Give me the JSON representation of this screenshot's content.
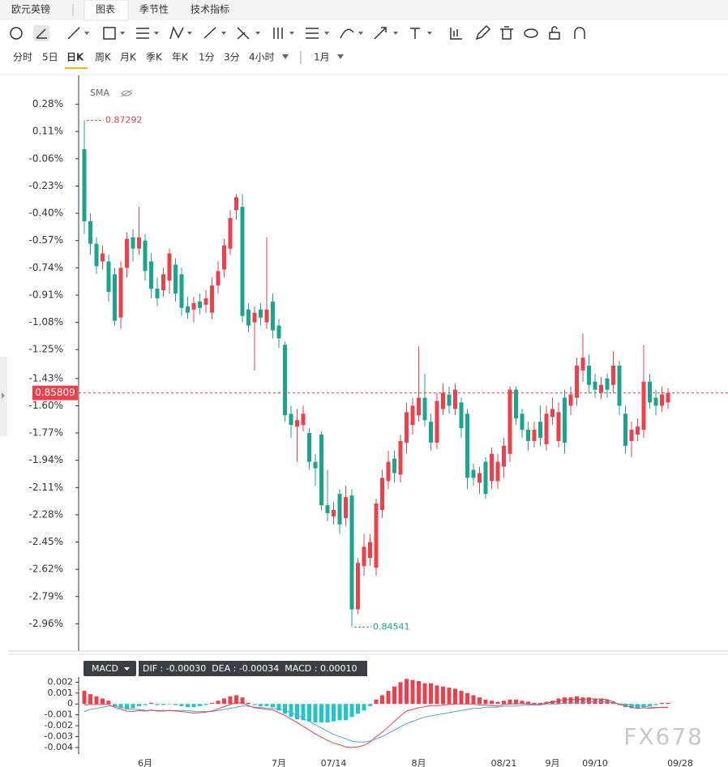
{
  "tabs": [
    "欧元英镑",
    "图表",
    "季节性",
    "技术指标"
  ],
  "periods": [
    "分时",
    "5日",
    "日K",
    "周K",
    "月K",
    "季K",
    "年K",
    "1分",
    "3分",
    "4小时"
  ],
  "period_extra": "1月",
  "watermark": "FX678",
  "chart_data": [
    {
      "type": "candlestick",
      "indicator": "SMA",
      "categories": [
        null,
        null,
        null,
        null,
        null,
        null,
        null,
        null,
        null,
        null,
        "6月",
        null,
        null,
        null,
        null,
        null,
        null,
        null,
        null,
        null,
        null,
        null,
        null,
        null,
        null,
        null,
        null,
        null,
        null,
        null,
        null,
        null,
        "7月",
        null,
        null,
        null,
        null,
        null,
        null,
        null,
        null,
        "07/14",
        null,
        null,
        null,
        null,
        null,
        null,
        null,
        null,
        null,
        null,
        null,
        null,
        null,
        "8月",
        null,
        null,
        null,
        null,
        null,
        null,
        null,
        null,
        null,
        null,
        null,
        null,
        null,
        "08/21",
        null,
        null,
        null,
        null,
        null,
        null,
        null,
        "9月",
        null,
        null,
        null,
        null,
        null,
        null,
        "09/10",
        null,
        null,
        null,
        null,
        null,
        null,
        null,
        null,
        null,
        null,
        null,
        null,
        null,
        "09/28"
      ],
      "open": [
        0.0,
        -0.45,
        -0.59,
        -0.7,
        -0.7,
        -0.78,
        -1.05,
        -0.74,
        -0.55,
        -0.62,
        -0.57,
        -0.7,
        -0.87,
        -0.88,
        -0.82,
        -0.72,
        -0.78,
        -0.98,
        -1.0,
        -0.95,
        -0.97,
        -1.02,
        -0.85,
        -0.75,
        -0.62,
        -0.38,
        -0.36,
        -1.0,
        -1.08,
        -1.0,
        -1.08,
        -0.95,
        -1.1,
        -1.22,
        -1.65,
        -1.73,
        -1.72,
        -1.77,
        -1.95,
        -1.78,
        -2.22,
        -2.29,
        -2.15,
        -2.3,
        -2.16,
        -2.87,
        -2.6,
        -2.55,
        -2.61,
        -2.25,
        -2.07,
        -1.93,
        -2.03,
        -1.83,
        -1.72,
        -1.66,
        -1.55,
        -1.7,
        -1.83,
        -1.62,
        -1.53,
        -1.62,
        -1.58,
        -1.65,
        -2.0,
        -2.08,
        -1.95,
        -2.07,
        -2.07,
        -1.98,
        -1.9,
        -1.5,
        -1.65,
        -1.75,
        -1.82,
        -1.7,
        -1.84,
        -1.67,
        -1.82,
        -1.55,
        -1.6,
        -1.55,
        -1.38,
        -1.35,
        -1.45,
        -1.52,
        -1.43,
        -1.47,
        -1.35,
        -1.65,
        -1.82,
        -1.78,
        -1.75,
        -1.45,
        -1.55,
        -1.6,
        -1.58,
        null,
        null
      ],
      "high": [
        0.18,
        -0.4,
        -0.55,
        -0.6,
        -0.66,
        -0.74,
        -0.7,
        -0.52,
        -0.5,
        -0.36,
        -0.53,
        -0.65,
        -0.8,
        -0.74,
        -0.62,
        -0.68,
        -0.74,
        -0.92,
        -0.92,
        -0.9,
        -0.88,
        -0.8,
        -0.7,
        -0.56,
        -0.38,
        -0.28,
        -0.28,
        -0.96,
        -0.98,
        -0.96,
        -0.55,
        -0.9,
        -1.06,
        -1.2,
        -1.6,
        -1.62,
        -1.6,
        -1.74,
        -1.9,
        -1.76,
        -2.0,
        -2.2,
        -2.12,
        -2.1,
        -2.12,
        -2.55,
        -2.4,
        -2.4,
        -2.18,
        -2.0,
        -1.88,
        -1.88,
        -1.78,
        -1.58,
        -1.55,
        -1.23,
        -1.4,
        -1.65,
        -1.52,
        -1.46,
        -1.48,
        -1.46,
        -1.55,
        -1.62,
        -1.96,
        -1.98,
        -1.92,
        -1.86,
        -1.9,
        -1.8,
        -1.48,
        -1.48,
        -1.62,
        -1.7,
        -1.7,
        -1.6,
        -1.6,
        -1.55,
        -1.58,
        -1.5,
        -1.48,
        -1.3,
        -1.15,
        -1.28,
        -1.4,
        -1.42,
        -1.4,
        -1.26,
        -1.32,
        -1.6,
        -1.7,
        -1.68,
        -1.22,
        -1.4,
        -1.5,
        -1.48,
        -1.49,
        null,
        null
      ],
      "low": [
        -0.53,
        -0.66,
        -0.78,
        -0.75,
        -0.95,
        -1.1,
        -1.12,
        -0.8,
        -0.7,
        -0.66,
        -0.82,
        -0.93,
        -0.98,
        -0.92,
        -0.9,
        -0.95,
        -1.04,
        -1.06,
        -1.08,
        -1.03,
        -1.02,
        -1.06,
        -0.9,
        -0.8,
        -0.66,
        -0.44,
        -1.08,
        -1.14,
        -1.38,
        -1.1,
        -1.12,
        -1.18,
        -1.24,
        -1.7,
        -1.8,
        -1.95,
        -1.76,
        -2.0,
        -2.1,
        -2.25,
        -2.32,
        -2.34,
        -2.4,
        -2.35,
        -2.98,
        -2.9,
        -2.66,
        -2.6,
        -2.66,
        -2.3,
        -2.12,
        -2.08,
        -2.08,
        -1.9,
        -1.78,
        -1.7,
        -1.73,
        -1.88,
        -1.87,
        -1.66,
        -1.65,
        -1.66,
        -1.8,
        -2.12,
        -2.1,
        -2.15,
        -2.18,
        -2.12,
        -2.12,
        -2.05,
        -1.95,
        -1.72,
        -1.8,
        -1.88,
        -1.86,
        -1.85,
        -1.88,
        -1.72,
        -1.86,
        -1.9,
        -1.66,
        -1.6,
        -1.45,
        -1.52,
        -1.55,
        -1.56,
        -1.55,
        -1.52,
        -1.66,
        -1.9,
        -1.92,
        -1.82,
        -1.8,
        -1.62,
        -1.66,
        -1.64,
        -1.62,
        null,
        null
      ],
      "close": [
        -0.45,
        -0.59,
        -0.73,
        -0.65,
        -0.89,
        -1.07,
        -0.74,
        -0.56,
        -0.62,
        -0.55,
        -0.76,
        -0.87,
        -0.93,
        -0.78,
        -0.65,
        -0.9,
        -0.99,
        -1.02,
        -0.96,
        -0.99,
        -0.93,
        -0.85,
        -0.76,
        -0.6,
        -0.43,
        -0.3,
        -1.04,
        -1.1,
        -1.02,
        -1.05,
        -1.0,
        -1.13,
        -1.18,
        -1.66,
        -1.72,
        -1.69,
        -1.65,
        -1.95,
        -1.99,
        -2.22,
        -2.27,
        -2.25,
        -2.34,
        -2.17,
        -2.87,
        -2.58,
        -2.48,
        -2.45,
        -2.21,
        -2.05,
        -1.95,
        -2.02,
        -1.82,
        -1.64,
        -1.6,
        -1.55,
        -1.69,
        -1.83,
        -1.57,
        -1.52,
        -1.6,
        -1.5,
        -1.74,
        -2.05,
        -2.05,
        -2.02,
        -2.15,
        -1.9,
        -1.95,
        -1.85,
        -1.5,
        -1.68,
        -1.75,
        -1.82,
        -1.75,
        -1.8,
        -1.65,
        -1.62,
        -1.64,
        -1.83,
        -1.53,
        -1.35,
        -1.3,
        -1.47,
        -1.5,
        -1.47,
        -1.5,
        -1.35,
        -1.6,
        -1.85,
        -1.75,
        -1.73,
        -1.45,
        -1.58,
        -1.6,
        -1.53,
        -1.52,
        null,
        null
      ],
      "up_color": "#ee3f4a",
      "down_color": "#1aa68c",
      "high_label": "0.87292",
      "low_label": "0.84541",
      "last_label": "0.85809",
      "ylim": [
        -3.13,
        0.45
      ],
      "yticks": [
        {
          "value": 0.28,
          "label": "0.28%"
        },
        {
          "value": 0.11,
          "label": "0.11%"
        },
        {
          "value": -0.06,
          "label": "-0.06%"
        },
        {
          "value": -0.23,
          "label": "-0.23%"
        },
        {
          "value": -0.4,
          "label": "-0.40%"
        },
        {
          "value": -0.57,
          "label": "-0.57%"
        },
        {
          "value": -0.74,
          "label": "-0.74%"
        },
        {
          "value": -0.91,
          "label": "-0.91%"
        },
        {
          "value": -1.08,
          "label": "-1.08%"
        },
        {
          "value": -1.25,
          "label": "-1.25%"
        },
        {
          "value": -1.43,
          "label": "-1.43%"
        },
        {
          "value": -1.6,
          "label": "-1.60%"
        },
        {
          "value": -1.77,
          "label": "-1.77%"
        },
        {
          "value": -1.94,
          "label": "-1.94%"
        },
        {
          "value": -2.11,
          "label": "-2.11%"
        },
        {
          "value": -2.28,
          "label": "-2.28%"
        },
        {
          "value": -2.45,
          "label": "-2.45%"
        },
        {
          "value": -2.62,
          "label": "-2.62%"
        },
        {
          "value": -2.79,
          "label": "-2.79%"
        },
        {
          "value": -2.96,
          "label": "-2.96%"
        }
      ],
      "grid": false
    },
    {
      "type": "macd",
      "label": "MACD",
      "legend": "DIF : -0.00030  DEA : -0.00034  MACD : 0.00010",
      "histogram": [
        0.0012,
        0.0009,
        0.0007,
        0.0005,
        0.0003,
        -0.0002,
        -0.0004,
        -0.0005,
        -0.0004,
        -0.0002,
        -0.0001,
        0.0001,
        -0.0001,
        -0.0001,
        0,
        -0.0001,
        -0.0002,
        -0.0003,
        -0.0003,
        -0.0002,
        -0.0001,
        0.0001,
        0.0003,
        0.0005,
        0.0007,
        0.0008,
        0.0006,
        0.0001,
        -0.0001,
        -0.0002,
        -0.0002,
        -0.0003,
        -0.0006,
        -0.0009,
        -0.0012,
        -0.0014,
        -0.0015,
        -0.0016,
        -0.0017,
        -0.0017,
        -0.0017,
        -0.0016,
        -0.0015,
        -0.0015,
        -0.0012,
        -0.0009,
        -0.0006,
        -0.0002,
        0.0004,
        0.0008,
        0.0012,
        0.0016,
        0.002,
        0.0023,
        0.0022,
        0.0021,
        0.0019,
        0.0019,
        0.0017,
        0.0016,
        0.0015,
        0.0014,
        0.0012,
        0.001,
        0.0008,
        0.0006,
        0.0004,
        0.0003,
        0.0002,
        0.0003,
        0.0004,
        0.0004,
        0.0003,
        0.0002,
        0.0001,
        0.0001,
        0.0002,
        0.0003,
        0.0005,
        0.0006,
        0.0006,
        0.0007,
        0.0006,
        0.0006,
        0.0005,
        0.0005,
        0.0004,
        0.0002,
        -0.0001,
        -0.0003,
        -0.0004,
        -0.0004,
        -0.0003,
        -0.0002,
        -0.0001,
        0.0001,
        0.0001,
        null,
        null
      ],
      "dif": [
        -0.0001,
        -5e-05,
        -5e-05,
        -5e-05,
        -5e-05,
        -0.0003,
        -0.0005,
        -0.00065,
        -0.0007,
        -0.0006,
        -0.00065,
        -0.00055,
        -0.00065,
        -0.00065,
        -0.0006,
        -0.00065,
        -0.0007,
        -0.00075,
        -0.00085,
        -0.0008,
        -0.00075,
        -0.00065,
        -0.00045,
        -0.00025,
        -5e-05,
        0.0001,
        0.0001,
        -0.00015,
        -0.00035,
        -0.0004,
        -0.0005,
        -0.00055,
        -0.0008,
        -0.00105,
        -0.0014,
        -0.0017,
        -0.00205,
        -0.0024,
        -0.00275,
        -0.00305,
        -0.00335,
        -0.0036,
        -0.00375,
        -0.00395,
        -0.004,
        -0.00395,
        -0.0038,
        -0.0035,
        -0.003,
        -0.0026,
        -0.0021,
        -0.0016,
        -0.0011,
        -0.00065,
        -0.0005,
        -0.00035,
        -0.00025,
        -0.00015,
        -0.00015,
        -0.0001,
        -5e-05,
        0,
        0,
        0,
        0,
        -0.0001,
        -0.0001,
        -0.00015,
        -0.0002,
        -5e-05,
        0,
        0,
        5e-05,
        0,
        -5e-05,
        -5e-05,
        0.0001,
        0.00015,
        0.00025,
        0.0004,
        0.0004,
        0.00045,
        0.0004,
        0.0005,
        0.00045,
        0.00045,
        0.0004,
        0.0002,
        -5e-05,
        -0.00015,
        -0.0003,
        -0.0004,
        -0.00035,
        -0.0004,
        -0.00035,
        -0.0003,
        -0.0003,
        null,
        null
      ],
      "dea": [
        -0.0007,
        -0.0005,
        -0.0004,
        -0.0003,
        -0.0002,
        -0.0002,
        -0.0003,
        -0.0004,
        -0.0005,
        -0.0005,
        -0.0006,
        -0.0006,
        -0.0006,
        -0.0006,
        -0.0006,
        -0.0006,
        -0.0006,
        -0.0006,
        -0.0007,
        -0.0007,
        -0.0007,
        -0.0007,
        -0.0006,
        -0.0005,
        -0.0004,
        -0.0003,
        -0.0002,
        -0.0002,
        -0.0003,
        -0.0003,
        -0.0004,
        -0.0004,
        -0.0005,
        -0.0006,
        -0.0008,
        -0.001,
        -0.0013,
        -0.0016,
        -0.0019,
        -0.0022,
        -0.0025,
        -0.0028,
        -0.003,
        -0.0032,
        -0.0034,
        -0.0035,
        -0.0035,
        -0.0034,
        -0.0032,
        -0.003,
        -0.0027,
        -0.0024,
        -0.0021,
        -0.0018,
        -0.0016,
        -0.0014,
        -0.0012,
        -0.0011,
        -0.001,
        -0.0009,
        -0.0008,
        -0.0007,
        -0.0006,
        -0.0005,
        -0.0004,
        -0.0004,
        -0.0003,
        -0.0003,
        -0.0003,
        -0.0002,
        -0.0002,
        -0.0002,
        -0.0001,
        -0.0001,
        -0.0001,
        -0.0001,
        0,
        0,
        0,
        0.0001,
        0.0001,
        0.0001,
        0.0001,
        0.0002,
        0.0002,
        0.0002,
        0.0002,
        0.0001,
        0,
        0,
        -0.0001,
        -0.0002,
        -0.0002,
        -0.0003,
        -0.0003,
        -0.00033,
        -0.00034,
        null,
        null
      ],
      "up_color": "#ee3f4a",
      "down_color": "#1ec8c8",
      "dif_color": "#e8404a",
      "dea_color": "#4aa8e0",
      "ylim": [
        -0.0046,
        0.0027
      ],
      "yticks": [
        0.002,
        0.001,
        0,
        -0.001,
        -0.002,
        -0.003,
        -0.004
      ]
    }
  ]
}
